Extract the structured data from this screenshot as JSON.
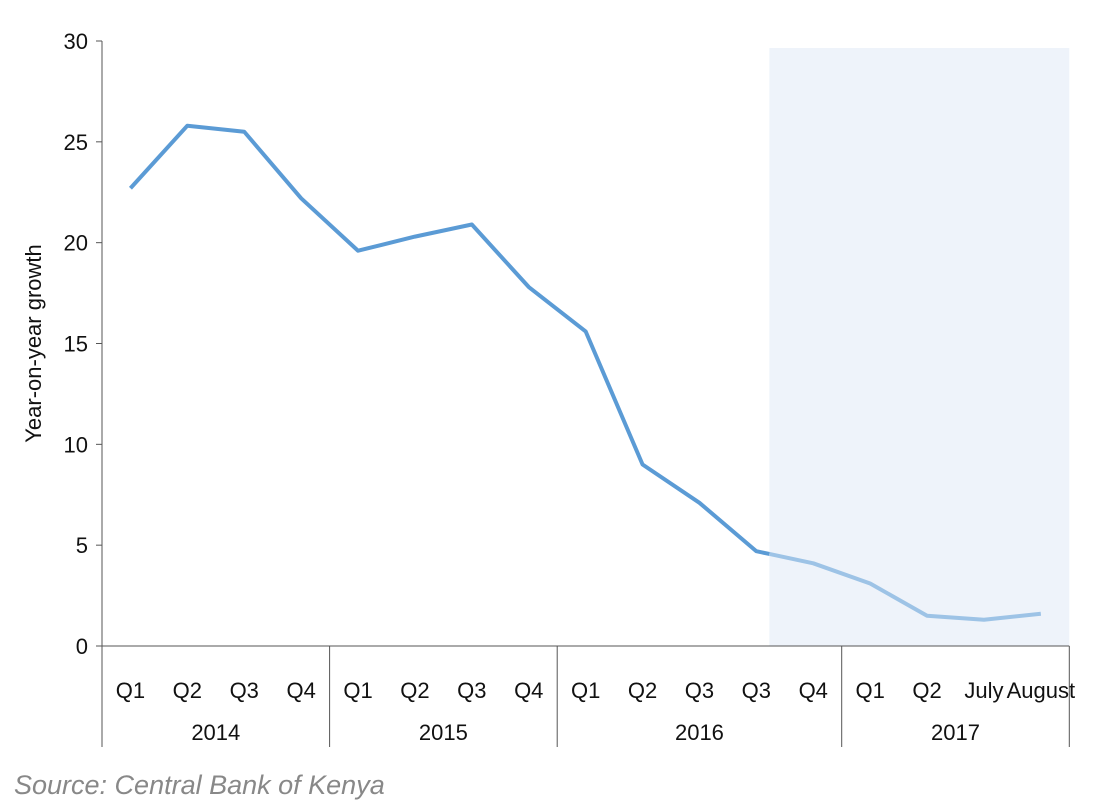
{
  "chart_data": {
    "type": "line",
    "ylabel": "Year-on-year growth",
    "xlabel": "",
    "ylim": [
      0,
      30
    ],
    "yticks": [
      0,
      5,
      10,
      15,
      20,
      25,
      30
    ],
    "grid": false,
    "groups": [
      {
        "label": "2014",
        "categories": [
          "Q1",
          "Q2",
          "Q3",
          "Q4"
        ]
      },
      {
        "label": "2015",
        "categories": [
          "Q1",
          "Q2",
          "Q3",
          "Q4"
        ]
      },
      {
        "label": "2016",
        "categories": [
          "Q1",
          "Q2",
          "Q3",
          "Q3",
          "Q4"
        ]
      },
      {
        "label": "2017",
        "categories": [
          "Q1",
          "Q2",
          "July",
          "August"
        ]
      }
    ],
    "values": [
      22.7,
      25.8,
      25.5,
      22.2,
      19.6,
      20.3,
      20.9,
      17.8,
      15.6,
      9.0,
      7.1,
      4.7,
      4.1,
      3.1,
      1.5,
      1.3,
      1.6
    ],
    "highlighted_region_start_index": 11,
    "colors": {
      "line": "#5b9bd5",
      "line_highlighted": "#9dc3e6",
      "shade": "#eef3fa",
      "axis": "#555555"
    }
  },
  "source": "Source: Central Bank of Kenya"
}
